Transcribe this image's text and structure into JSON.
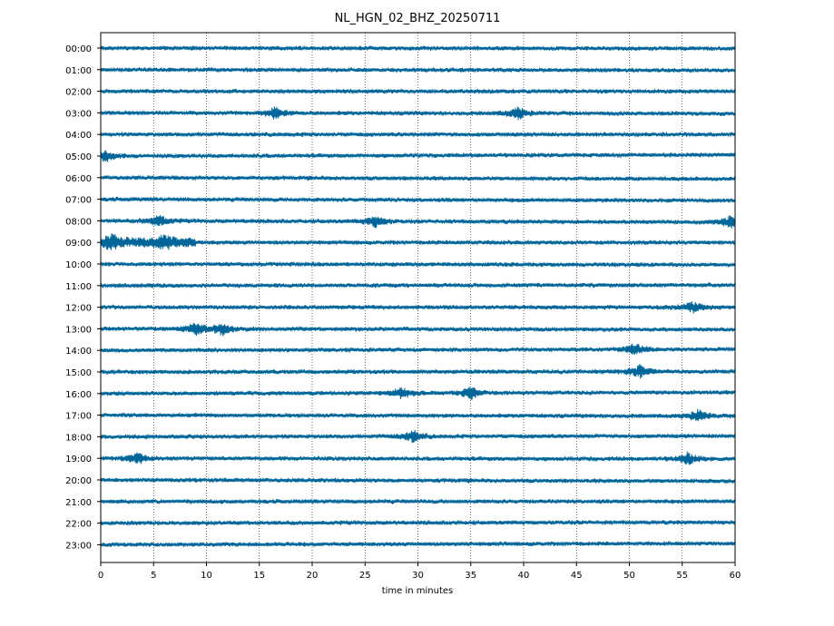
{
  "chart_data": {
    "type": "line",
    "title": "NL_HGN_02_BHZ_20250711",
    "xlabel": "time in minutes",
    "ylabel": "",
    "xlim": [
      0,
      60
    ],
    "x_ticks": [
      0,
      5,
      10,
      15,
      20,
      25,
      30,
      35,
      40,
      45,
      50,
      55,
      60
    ],
    "hour_labels": [
      "00:00",
      "01:00",
      "02:00",
      "03:00",
      "04:00",
      "05:00",
      "06:00",
      "07:00",
      "08:00",
      "09:00",
      "10:00",
      "11:00",
      "12:00",
      "13:00",
      "14:00",
      "15:00",
      "16:00",
      "17:00",
      "18:00",
      "19:00",
      "20:00",
      "21:00",
      "22:00",
      "23:00"
    ],
    "grid": "vertical dotted lines at x ticks",
    "trace_color": "#006699",
    "events": [
      {
        "hour": "03:00",
        "minute": 16.5
      },
      {
        "hour": "03:00",
        "minute": 39.5
      },
      {
        "hour": "05:00",
        "minute": 0.5
      },
      {
        "hour": "08:00",
        "minute": 5.5
      },
      {
        "hour": "08:00",
        "minute": 26.0
      },
      {
        "hour": "08:00",
        "minute": 59.5
      },
      {
        "hour": "09:00",
        "minute": 1.0
      },
      {
        "hour": "09:00",
        "minute": 6.0
      },
      {
        "hour": "12:00",
        "minute": 56.0
      },
      {
        "hour": "13:00",
        "minute": 9.0
      },
      {
        "hour": "13:00",
        "minute": 11.5
      },
      {
        "hour": "14:00",
        "minute": 50.5
      },
      {
        "hour": "15:00",
        "minute": 51.0
      },
      {
        "hour": "16:00",
        "minute": 28.5
      },
      {
        "hour": "16:00",
        "minute": 35.0
      },
      {
        "hour": "17:00",
        "minute": 56.5
      },
      {
        "hour": "18:00",
        "minute": 29.5
      },
      {
        "hour": "19:00",
        "minute": 3.5
      },
      {
        "hour": "19:00",
        "minute": 55.5
      }
    ]
  }
}
